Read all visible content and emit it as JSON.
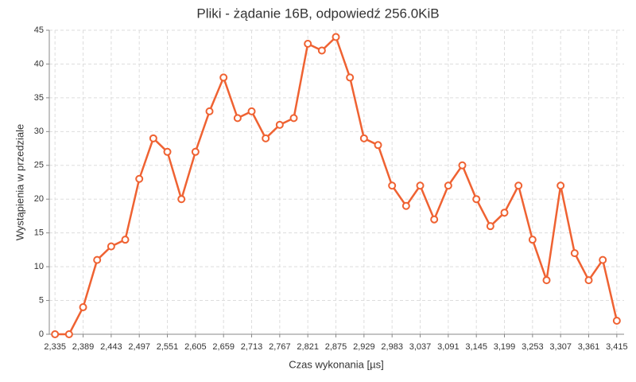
{
  "chart_data": {
    "type": "line",
    "title": "Pliki - żądanie 16B, odpowiedź 256.0KiB",
    "xlabel": "Czas wykonania [µs]",
    "ylabel": "Wystąpienia w przedziale",
    "x": [
      2335,
      2362,
      2389,
      2416,
      2443,
      2470,
      2497,
      2524,
      2551,
      2578,
      2605,
      2632,
      2659,
      2686,
      2713,
      2740,
      2767,
      2794,
      2821,
      2848,
      2875,
      2902,
      2929,
      2956,
      2983,
      3010,
      3037,
      3064,
      3091,
      3118,
      3145,
      3172,
      3199,
      3226,
      3253,
      3280,
      3307,
      3334,
      3361,
      3388,
      3415
    ],
    "values": [
      0,
      0,
      4,
      11,
      13,
      14,
      23,
      29,
      27,
      20,
      27,
      33,
      38,
      32,
      33,
      29,
      31,
      32,
      43,
      42,
      44,
      38,
      29,
      28,
      22,
      19,
      22,
      17,
      22,
      25,
      20,
      16,
      18,
      22,
      14,
      8,
      22,
      12,
      8,
      11,
      2
    ],
    "color": "#ef6232",
    "xlim": [
      2324,
      3429
    ],
    "xticks": [
      {
        "value": 2335,
        "label": "2,335"
      },
      {
        "value": 2389,
        "label": "2,389"
      },
      {
        "value": 2443,
        "label": "2,443"
      },
      {
        "value": 2497,
        "label": "2,497"
      },
      {
        "value": 2551,
        "label": "2,551"
      },
      {
        "value": 2605,
        "label": "2,605"
      },
      {
        "value": 2659,
        "label": "2,659"
      },
      {
        "value": 2713,
        "label": "2,713"
      },
      {
        "value": 2767,
        "label": "2,767"
      },
      {
        "value": 2821,
        "label": "2,821"
      },
      {
        "value": 2875,
        "label": "2,875"
      },
      {
        "value": 2929,
        "label": "2,929"
      },
      {
        "value": 2983,
        "label": "2,983"
      },
      {
        "value": 3037,
        "label": "3,037"
      },
      {
        "value": 3091,
        "label": "3,091"
      },
      {
        "value": 3145,
        "label": "3,145"
      },
      {
        "value": 3199,
        "label": "3,199"
      },
      {
        "value": 3253,
        "label": "3,253"
      },
      {
        "value": 3307,
        "label": "3,307"
      },
      {
        "value": 3361,
        "label": "3,361"
      },
      {
        "value": 3415,
        "label": "3,415"
      }
    ],
    "ylim": [
      0,
      45
    ],
    "yticks": [
      0,
      5,
      10,
      15,
      20,
      25,
      30,
      35,
      40,
      45
    ],
    "grid": true
  }
}
